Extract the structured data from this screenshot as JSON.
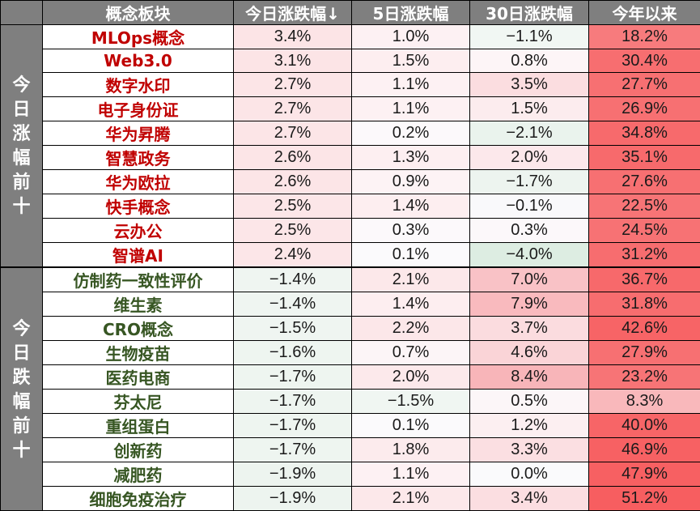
{
  "table": {
    "headers": [
      "",
      "概念板块",
      "今日涨跌幅↓",
      "5日涨跌幅",
      "30日涨跌幅",
      "今年以来"
    ],
    "groups": [
      {
        "label": "今日涨幅前十",
        "type": "up"
      },
      {
        "label": "今日跌幅前十",
        "type": "down"
      }
    ],
    "rows": [
      {
        "name": "MLOps概念",
        "d1": "3.4%",
        "d5": "1.0%",
        "d30": "−1.1%",
        "ytd": "18.2%",
        "c1": "#fce4e6",
        "c5": "#fdf1f3",
        "c30": "#f1f7f3",
        "cy": "#f77b7d"
      },
      {
        "name": "Web3.0",
        "d1": "3.1%",
        "d5": "1.5%",
        "d30": "0.8%",
        "ytd": "30.4%",
        "c1": "#fce4e6",
        "c5": "#fdeef0",
        "c30": "#fdf5f7",
        "cy": "#f76e70"
      },
      {
        "name": "数字水印",
        "d1": "2.7%",
        "d5": "1.1%",
        "d30": "3.5%",
        "ytd": "27.7%",
        "c1": "#fce5e7",
        "c5": "#fdf1f3",
        "c30": "#fbdde0",
        "cy": "#f77072"
      },
      {
        "name": "电子身份证",
        "d1": "2.7%",
        "d5": "1.1%",
        "d30": "1.5%",
        "ytd": "26.9%",
        "c1": "#fce5e7",
        "c5": "#fdf1f3",
        "c30": "#fcecee",
        "cy": "#f77072"
      },
      {
        "name": "华为昇腾",
        "d1": "2.7%",
        "d5": "0.2%",
        "d30": "−2.1%",
        "ytd": "34.8%",
        "c1": "#fce5e7",
        "c5": "#fcf9fb",
        "c30": "#eaf3ed",
        "cy": "#f76a6c"
      },
      {
        "name": "智慧政务",
        "d1": "2.6%",
        "d5": "1.3%",
        "d30": "2.0%",
        "ytd": "35.1%",
        "c1": "#fce5e7",
        "c5": "#fdeff1",
        "c30": "#fce8eb",
        "cy": "#f76a6c"
      },
      {
        "name": "华为欧拉",
        "d1": "2.6%",
        "d5": "0.9%",
        "d30": "−1.7%",
        "ytd": "27.6%",
        "c1": "#fce5e7",
        "c5": "#fdf3f5",
        "c30": "#edf4ef",
        "cy": "#f77072"
      },
      {
        "name": "快手概念",
        "d1": "2.5%",
        "d5": "1.4%",
        "d30": "−0.1%",
        "ytd": "22.5%",
        "c1": "#fce6e8",
        "c5": "#fdeef0",
        "c30": "#f9f9fb",
        "cy": "#f77476"
      },
      {
        "name": "云办公",
        "d1": "2.5%",
        "d5": "0.3%",
        "d30": "0.3%",
        "ytd": "24.5%",
        "c1": "#fce6e8",
        "c5": "#fcf9fb",
        "c30": "#fcf8fa",
        "cy": "#f77274"
      },
      {
        "name": "智谱AI",
        "d1": "2.4%",
        "d5": "0.1%",
        "d30": "−4.0%",
        "ytd": "31.2%",
        "c1": "#fce6e8",
        "c5": "#fbfafc",
        "c30": "#ddede2",
        "cy": "#f76d6f"
      },
      {
        "name": "仿制药一致性评价",
        "d1": "−1.4%",
        "d5": "2.1%",
        "d30": "7.0%",
        "ytd": "36.7%",
        "c1": "#eff5f1",
        "c5": "#fce8ea",
        "c30": "#f9c2c6",
        "cy": "#f7696b"
      },
      {
        "name": "维生素",
        "d1": "−1.4%",
        "d5": "1.4%",
        "d30": "7.9%",
        "ytd": "31.8%",
        "c1": "#eff5f1",
        "c5": "#fdeef0",
        "c30": "#f9babe",
        "cy": "#f76d6f"
      },
      {
        "name": "CRO概念",
        "d1": "−1.5%",
        "d5": "2.2%",
        "d30": "3.7%",
        "ytd": "42.6%",
        "c1": "#eff5f1",
        "c5": "#fce7e9",
        "c30": "#fbdcdf",
        "cy": "#f76466"
      },
      {
        "name": "生物疫苗",
        "d1": "−1.6%",
        "d5": "0.7%",
        "d30": "4.6%",
        "ytd": "27.9%",
        "c1": "#eef5f0",
        "c5": "#fcf5f7",
        "c30": "#fad4d7",
        "cy": "#f77072"
      },
      {
        "name": "医药电商",
        "d1": "−1.7%",
        "d5": "2.0%",
        "d30": "8.4%",
        "ytd": "23.2%",
        "c1": "#eef5f0",
        "c5": "#fce9eb",
        "c30": "#f8b5b9",
        "cy": "#f77476"
      },
      {
        "name": "芬太尼",
        "d1": "−1.7%",
        "d5": "−1.5%",
        "d30": "0.5%",
        "ytd": "8.3%",
        "c1": "#eef5f0",
        "c5": "#f0f6f2",
        "c30": "#fcf6f8",
        "cy": "#f9b8bb"
      },
      {
        "name": "重组蛋白",
        "d1": "−1.7%",
        "d5": "0.1%",
        "d30": "1.2%",
        "ytd": "40.0%",
        "c1": "#eef5f0",
        "c5": "#fbfafc",
        "c30": "#fcefF1",
        "cy": "#f76567"
      },
      {
        "name": "创新药",
        "d1": "−1.7%",
        "d5": "1.8%",
        "d30": "3.3%",
        "ytd": "46.9%",
        "c1": "#eef5f0",
        "c5": "#fcebed",
        "c30": "#fbdfe2",
        "cy": "#f76163"
      },
      {
        "name": "减肥药",
        "d1": "−1.9%",
        "d5": "1.1%",
        "d30": "0.0%",
        "ytd": "47.9%",
        "c1": "#edf4ef",
        "c5": "#fdf1f3",
        "c30": "#fafafc",
        "cy": "#f76062"
      },
      {
        "name": "细胞免疫治疗",
        "d1": "−1.9%",
        "d5": "2.1%",
        "d30": "3.4%",
        "ytd": "51.2%",
        "c1": "#edf4ef",
        "c5": "#fce8ea",
        "c30": "#fbdee1",
        "cy": "#f75e60"
      }
    ]
  },
  "colors": {
    "header_bg": "#7f7f7f",
    "header_text": "#ffffff",
    "up_name": "#c00000",
    "down_name": "#375623"
  },
  "chart_data": {
    "type": "table",
    "title": "",
    "columns": [
      "概念板块",
      "今日涨跌幅",
      "5日涨跌幅",
      "30日涨跌幅",
      "今年以来"
    ],
    "groups": {
      "今日涨幅前十": [
        0,
        9
      ],
      "今日跌幅前十": [
        10,
        19
      ]
    },
    "rows": [
      [
        "MLOps概念",
        3.4,
        1.0,
        -1.1,
        18.2
      ],
      [
        "Web3.0",
        3.1,
        1.5,
        0.8,
        30.4
      ],
      [
        "数字水印",
        2.7,
        1.1,
        3.5,
        27.7
      ],
      [
        "电子身份证",
        2.7,
        1.1,
        1.5,
        26.9
      ],
      [
        "华为昇腾",
        2.7,
        0.2,
        -2.1,
        34.8
      ],
      [
        "智慧政务",
        2.6,
        1.3,
        2.0,
        35.1
      ],
      [
        "华为欧拉",
        2.6,
        0.9,
        -1.7,
        27.6
      ],
      [
        "快手概念",
        2.5,
        1.4,
        -0.1,
        22.5
      ],
      [
        "云办公",
        2.5,
        0.3,
        0.3,
        24.5
      ],
      [
        "智谱AI",
        2.4,
        0.1,
        -4.0,
        31.2
      ],
      [
        "仿制药一致性评价",
        -1.4,
        2.1,
        7.0,
        36.7
      ],
      [
        "维生素",
        -1.4,
        1.4,
        7.9,
        31.8
      ],
      [
        "CRO概念",
        -1.5,
        2.2,
        3.7,
        42.6
      ],
      [
        "生物疫苗",
        -1.6,
        0.7,
        4.6,
        27.9
      ],
      [
        "医药电商",
        -1.7,
        2.0,
        8.4,
        23.2
      ],
      [
        "芬太尼",
        -1.7,
        -1.5,
        0.5,
        8.3
      ],
      [
        "重组蛋白",
        -1.7,
        0.1,
        1.2,
        40.0
      ],
      [
        "创新药",
        -1.7,
        1.8,
        3.3,
        46.9
      ],
      [
        "减肥药",
        -1.9,
        1.1,
        0.0,
        47.9
      ],
      [
        "细胞免疫治疗",
        -1.9,
        2.1,
        3.4,
        51.2
      ]
    ],
    "unit": "%",
    "sort": "今日涨跌幅 descending"
  }
}
